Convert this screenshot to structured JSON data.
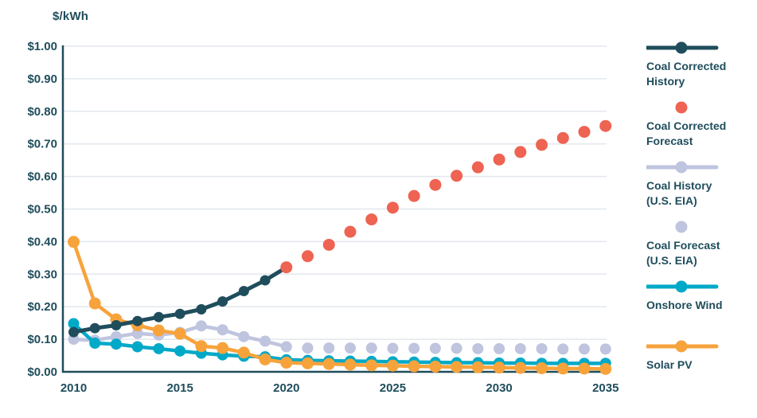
{
  "title": "$/kWh",
  "colors": {
    "navy": "#1F4D5C",
    "red": "#EE6352",
    "lavender": "#BFC4DF",
    "teal": "#00A9C7",
    "orange": "#F7A33C",
    "gridline": "#E3E7ED",
    "axis": "#1F4D5C",
    "text": "#1F4D5C",
    "background": "#FFFFFF"
  },
  "chart_data": {
    "type": "line",
    "title": "$/kWh",
    "xlabel": "",
    "ylabel": "$/kWh",
    "ylim": [
      0,
      1.0
    ],
    "y_tick_step": 0.1,
    "y_ticks": [
      "$1.00",
      "$0.90",
      "$0.80",
      "$0.70",
      "$0.60",
      "$0.50",
      "$0.40",
      "$0.30",
      "$0.20",
      "$0.10",
      "$0.00"
    ],
    "x_ticks": [
      2010,
      2015,
      2020,
      2025,
      2030,
      2035
    ],
    "x_range": [
      2010,
      2035
    ],
    "grid": "horizontal",
    "legend_position": "right",
    "series": [
      {
        "name": "Coal History (U.S. EIA)",
        "marker": "line-dot",
        "color": "#BFC4DF",
        "line_width": 4.5,
        "dot_r": 7,
        "z": 1,
        "start_year": 2010,
        "values": [
          0.1,
          0.097,
          0.108,
          0.118,
          0.113,
          0.121,
          0.141,
          0.129,
          0.108,
          0.094,
          0.077
        ]
      },
      {
        "name": "Coal Forecast (U.S. EIA)",
        "marker": "dot",
        "color": "#BFC4DF",
        "line_width": 0,
        "dot_r": 7,
        "z": 2,
        "start_year": 2021,
        "values": [
          0.073,
          0.073,
          0.073,
          0.073,
          0.072,
          0.072,
          0.072,
          0.072,
          0.071,
          0.071,
          0.071,
          0.071,
          0.07,
          0.07,
          0.07
        ]
      },
      {
        "name": "Onshore Wind",
        "marker": "line-dot",
        "color": "#00A9C7",
        "line_width": 4.5,
        "dot_r": 7,
        "z": 3,
        "start_year": 2010,
        "values": [
          0.148,
          0.088,
          0.085,
          0.077,
          0.071,
          0.064,
          0.057,
          0.052,
          0.048,
          0.046,
          0.037,
          0.035,
          0.034,
          0.033,
          0.032,
          0.031,
          0.03,
          0.029,
          0.028,
          0.028,
          0.027,
          0.027,
          0.026,
          0.026,
          0.026,
          0.026
        ]
      },
      {
        "name": "Solar PV",
        "marker": "line-dot",
        "color": "#F7A33C",
        "line_width": 4.5,
        "dot_r": 7.5,
        "z": 4,
        "start_year": 2010,
        "values": [
          0.399,
          0.21,
          0.161,
          0.143,
          0.127,
          0.117,
          0.079,
          0.073,
          0.059,
          0.038,
          0.028,
          0.026,
          0.024,
          0.022,
          0.02,
          0.019,
          0.017,
          0.016,
          0.015,
          0.014,
          0.013,
          0.012,
          0.011,
          0.01,
          0.01,
          0.009
        ]
      },
      {
        "name": "Coal Corrected History",
        "marker": "line-dot",
        "color": "#1F4D5C",
        "line_width": 5,
        "dot_r": 6.5,
        "z": 5,
        "start_year": 2010,
        "values": [
          0.122,
          0.134,
          0.143,
          0.156,
          0.168,
          0.178,
          0.192,
          0.216,
          0.248,
          0.281,
          0.321
        ]
      },
      {
        "name": "Coal Corrected Forecast",
        "marker": "dot",
        "color": "#EE6352",
        "line_width": 0,
        "dot_r": 7.5,
        "z": 6,
        "start_year": 2020,
        "values": [
          0.321,
          0.355,
          0.39,
          0.43,
          0.468,
          0.504,
          0.54,
          0.574,
          0.602,
          0.628,
          0.652,
          0.675,
          0.697,
          0.718,
          0.737,
          0.755
        ]
      }
    ]
  },
  "legend": [
    {
      "label_lines": [
        "Coal Corrected",
        "History"
      ],
      "marker": "line-dot",
      "color": "#1F4D5C"
    },
    {
      "label_lines": [
        "Coal Corrected",
        "Forecast"
      ],
      "marker": "dot",
      "color": "#EE6352"
    },
    {
      "label_lines": [
        "Coal History",
        "(U.S. EIA)"
      ],
      "marker": "line-dot",
      "color": "#BFC4DF"
    },
    {
      "label_lines": [
        "Coal Forecast",
        "(U.S. EIA)"
      ],
      "marker": "dot",
      "color": "#BFC4DF"
    },
    {
      "label_lines": [
        "Onshore Wind"
      ],
      "marker": "line-dot",
      "color": "#00A9C7"
    },
    {
      "label_lines": [
        "Solar PV"
      ],
      "marker": "line-dot",
      "color": "#F7A33C"
    }
  ]
}
